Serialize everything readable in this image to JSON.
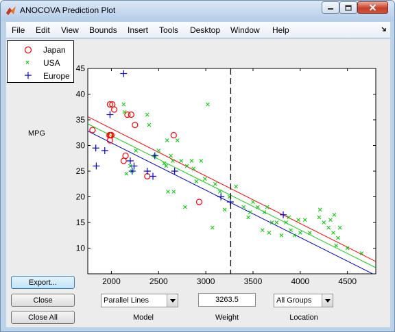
{
  "window": {
    "title": "ANOCOVA Prediction Plot",
    "icon": "matlab-icon",
    "min_icon": "minimize-icon",
    "max_icon": "maximize-icon",
    "close_icon": "close-icon"
  },
  "menu": {
    "items": [
      "File",
      "Edit",
      "View",
      "Bounds",
      "Insert",
      "Tools",
      "Desktop",
      "Window",
      "Help"
    ],
    "dock_icon": "dock-arrow-icon"
  },
  "legend": {
    "entries": [
      {
        "label": "Japan",
        "marker": "circle",
        "color": "#ff0000"
      },
      {
        "label": "USA",
        "marker": "x",
        "color": "#00cc00"
      },
      {
        "label": "Europe",
        "marker": "plus",
        "color": "#0000cc"
      }
    ]
  },
  "axes": {
    "ylabel": "MPG"
  },
  "chart_data": {
    "type": "scatter",
    "xlim": [
      1750,
      4800
    ],
    "ylim": [
      5,
      45
    ],
    "xticks": [
      2000,
      2500,
      3000,
      3500,
      4000,
      4500
    ],
    "yticks": [
      10,
      15,
      20,
      25,
      30,
      35,
      40,
      45
    ],
    "ylabel": "MPG",
    "grid": false,
    "cursor_x": 3263.5,
    "lines": [
      {
        "group": "Japan",
        "color": "#ff0000",
        "x": [
          1750,
          4800
        ],
        "y": [
          35.6,
          7.4
        ]
      },
      {
        "group": "USA",
        "color": "#00cc00",
        "x": [
          1750,
          4800
        ],
        "y": [
          34.2,
          6.2
        ]
      },
      {
        "group": "Europe",
        "color": "#0000cc",
        "x": [
          1750,
          4800
        ],
        "y": [
          32.8,
          4.7
        ]
      }
    ],
    "series": [
      {
        "name": "Japan",
        "marker": "circle",
        "color": "#ff0000",
        "points": [
          [
            1800,
            33
          ],
          [
            1985,
            38
          ],
          [
            2010,
            38
          ],
          [
            2030,
            37
          ],
          [
            1980,
            32
          ],
          [
            1990,
            32
          ],
          [
            2000,
            32
          ],
          [
            1985,
            31
          ],
          [
            2130,
            27
          ],
          [
            2150,
            28
          ],
          [
            2170,
            36
          ],
          [
            2210,
            36
          ],
          [
            2250,
            34
          ],
          [
            2380,
            24
          ],
          [
            2660,
            32
          ],
          [
            2930,
            19
          ]
        ]
      },
      {
        "name": "USA",
        "marker": "x",
        "color": "#00cc00",
        "points": [
          [
            2130,
            38
          ],
          [
            2140,
            36.5
          ],
          [
            2160,
            24.5
          ],
          [
            2200,
            26
          ],
          [
            2220,
            25
          ],
          [
            2260,
            29
          ],
          [
            2380,
            36
          ],
          [
            2400,
            34
          ],
          [
            2460,
            28
          ],
          [
            2500,
            29
          ],
          [
            2560,
            26.5
          ],
          [
            2580,
            26
          ],
          [
            2590,
            31
          ],
          [
            2600,
            21
          ],
          [
            2630,
            28
          ],
          [
            2650,
            27
          ],
          [
            2660,
            21
          ],
          [
            2700,
            31
          ],
          [
            2740,
            27
          ],
          [
            2780,
            18
          ],
          [
            2800,
            26
          ],
          [
            2850,
            27
          ],
          [
            2870,
            25.5
          ],
          [
            2900,
            23
          ],
          [
            2950,
            27
          ],
          [
            2990,
            23.5
          ],
          [
            3020,
            38
          ],
          [
            3070,
            14
          ],
          [
            3100,
            22.5
          ],
          [
            3150,
            21
          ],
          [
            3200,
            17.5
          ],
          [
            3250,
            20
          ],
          [
            3320,
            22
          ],
          [
            3400,
            18
          ],
          [
            3450,
            16
          ],
          [
            3470,
            17
          ],
          [
            3500,
            19
          ],
          [
            3550,
            18
          ],
          [
            3600,
            13.5
          ],
          [
            3620,
            17
          ],
          [
            3650,
            18
          ],
          [
            3670,
            13
          ],
          [
            3700,
            15
          ],
          [
            3750,
            15
          ],
          [
            3800,
            12.5
          ],
          [
            3850,
            15
          ],
          [
            3880,
            16
          ],
          [
            3900,
            13.5
          ],
          [
            3940,
            12.5
          ],
          [
            3980,
            15.5
          ],
          [
            4000,
            13
          ],
          [
            4050,
            15.5
          ],
          [
            4100,
            13
          ],
          [
            4200,
            16
          ],
          [
            4210,
            17.5
          ],
          [
            4250,
            15
          ],
          [
            4300,
            14
          ],
          [
            4320,
            15.5
          ],
          [
            4350,
            13
          ],
          [
            4360,
            16.5
          ],
          [
            4380,
            10.5
          ],
          [
            4400,
            12
          ],
          [
            4420,
            14
          ],
          [
            4500,
            10
          ],
          [
            4650,
            9
          ]
        ]
      },
      {
        "name": "Europe",
        "marker": "plus",
        "color": "#0000cc",
        "points": [
          [
            1835,
            29.5
          ],
          [
            1840,
            26
          ],
          [
            1930,
            29
          ],
          [
            1985,
            36
          ],
          [
            2130,
            44
          ],
          [
            2200,
            27
          ],
          [
            2220,
            25
          ],
          [
            2240,
            26
          ],
          [
            2380,
            25
          ],
          [
            2440,
            24
          ],
          [
            2460,
            28
          ],
          [
            2670,
            25
          ],
          [
            3160,
            20
          ],
          [
            3260,
            19
          ],
          [
            3820,
            16.5
          ]
        ]
      }
    ]
  },
  "buttons": {
    "export": "Export...",
    "close": "Close",
    "close_all": "Close All"
  },
  "controls": {
    "model_value": "Parallel Lines",
    "model_label": "Model",
    "weight_value": "3263.5",
    "weight_label": "Weight",
    "location_value": "All Groups",
    "location_label": "Location",
    "dropdown_icon": "dropdown-arrow-icon"
  }
}
